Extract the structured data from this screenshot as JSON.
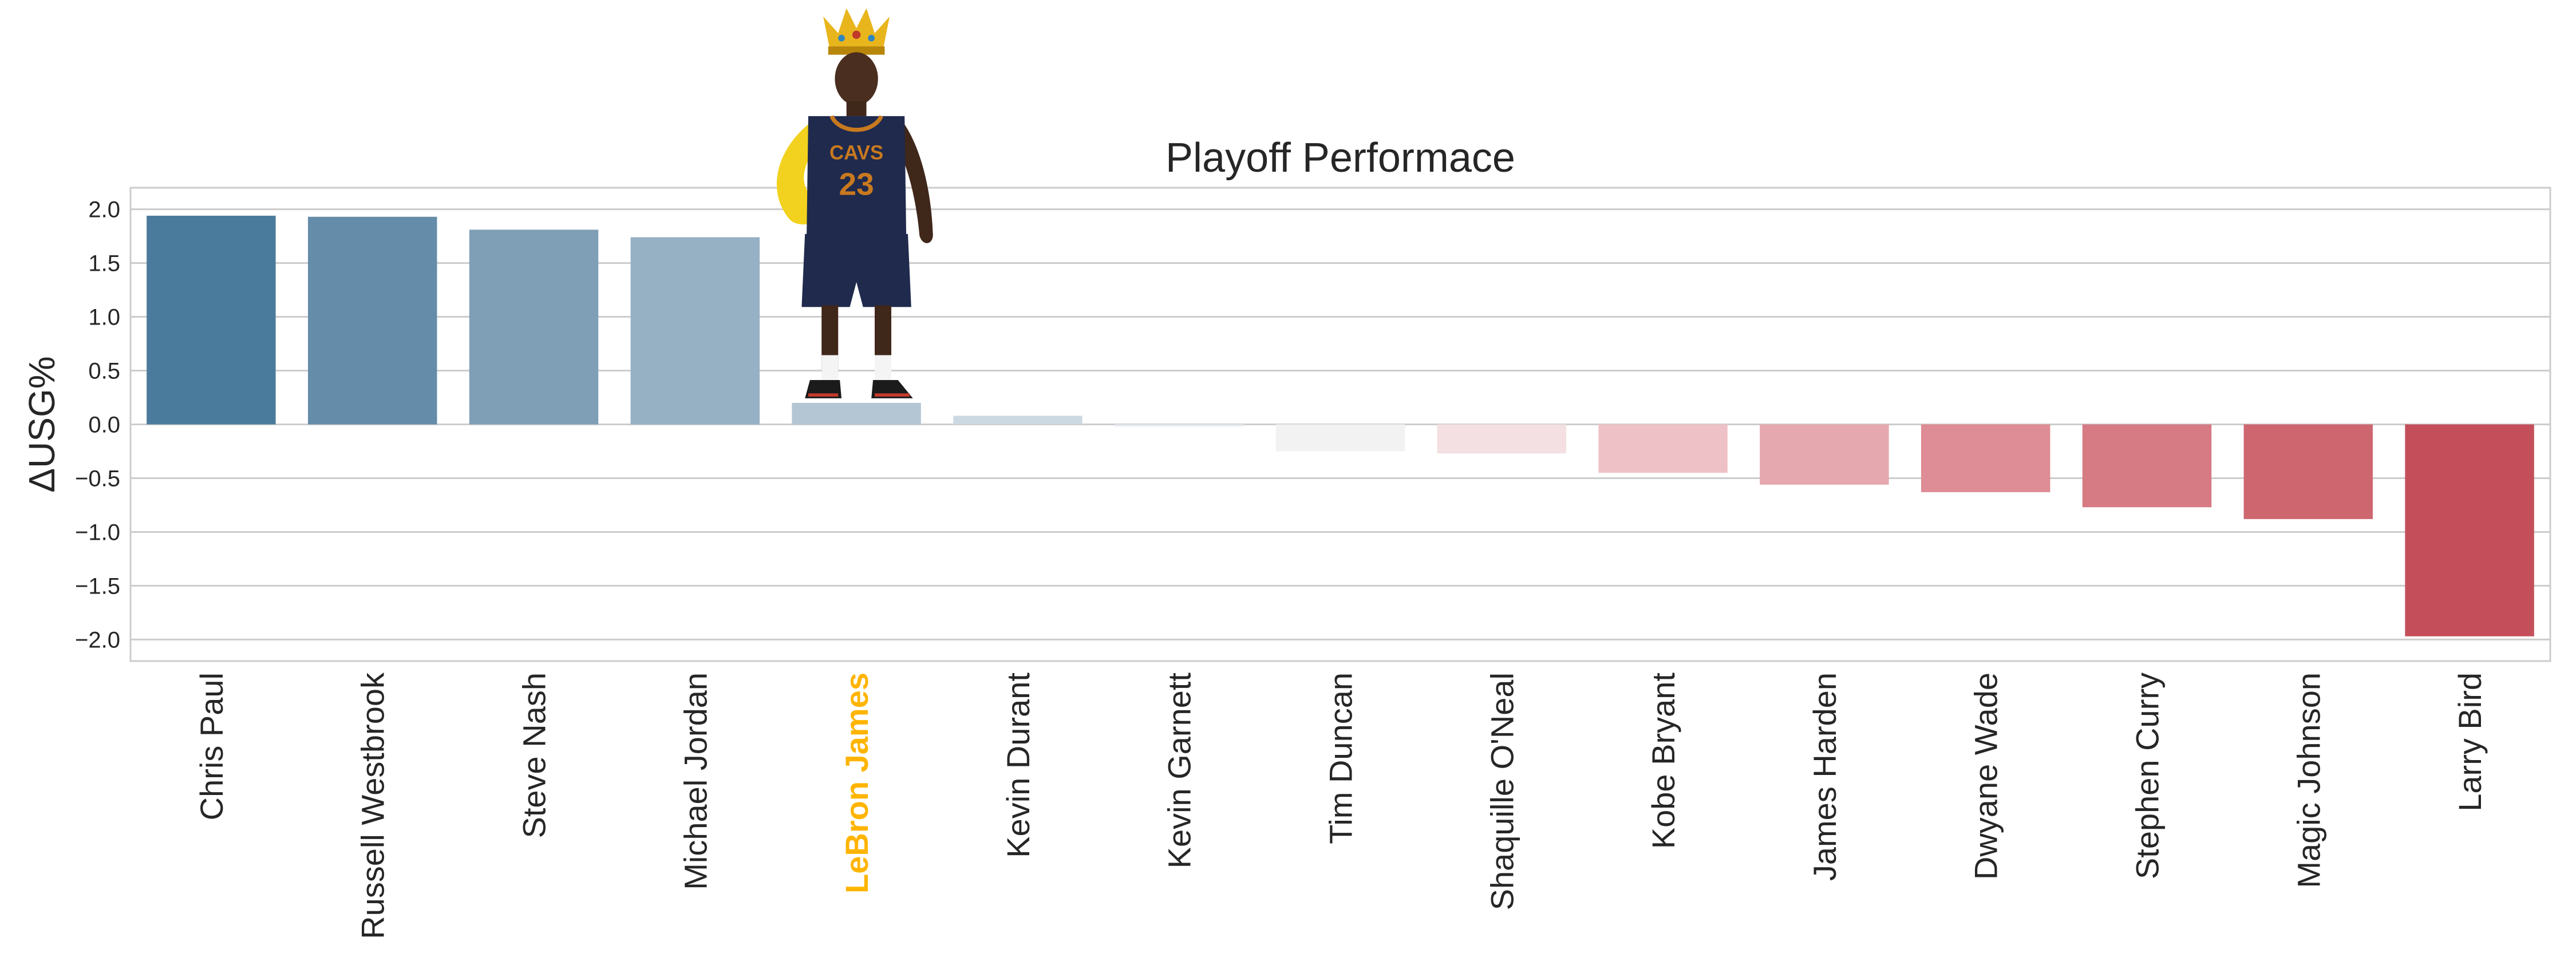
{
  "chart_data": {
    "type": "bar",
    "title": "Playoff Performace",
    "xlabel": "",
    "ylabel": "ΔUSG%",
    "ylim": [
      -2.2,
      2.2
    ],
    "yticks": [
      2.0,
      1.5,
      1.0,
      0.5,
      0.0,
      -0.5,
      -1.0,
      -1.5,
      -2.0
    ],
    "ytick_labels": [
      "2.0",
      "1.5",
      "1.0",
      "0.5",
      "0.0",
      "−0.5",
      "−1.0",
      "−1.5",
      "−2.0"
    ],
    "grid": true,
    "categories": [
      "Chris Paul",
      "Russell Westbrook",
      "Steve Nash",
      "Michael Jordan",
      "LeBron James",
      "Kevin Durant",
      "Kevin Garnett",
      "Tim Duncan",
      "Shaquille O'Neal",
      "Kobe Bryant",
      "James Harden",
      "Dwyane Wade",
      "Stephen Curry",
      "Magic Johnson",
      "Larry Bird"
    ],
    "values": [
      1.94,
      1.93,
      1.81,
      1.74,
      0.2,
      0.08,
      -0.02,
      -0.25,
      -0.27,
      -0.45,
      -0.56,
      -0.63,
      -0.77,
      -0.88,
      -1.97
    ],
    "bar_colors": [
      "#4b7b9c",
      "#658ca8",
      "#7f9fb6",
      "#96b0c4",
      "#b4c6d4",
      "#cdd9e2",
      "#e8ecf0",
      "#f2f2f2",
      "#f4dfe2",
      "#eec1c7",
      "#e6a8af",
      "#de8c95",
      "#d67a83",
      "#ce6670",
      "#c44f5a"
    ],
    "highlight": {
      "category": "LeBron James",
      "label_color": "#ffb400"
    }
  },
  "decorations": {
    "player_figure": {
      "icon": "basketball-player-with-crown-icon",
      "jersey_text": "CAVS",
      "jersey_number": "23",
      "jersey_color": "#1f2a4d",
      "trim_color": "#c8791f",
      "crown_color": "#e9b51d",
      "sleeve_color": "#f2d21e"
    }
  }
}
